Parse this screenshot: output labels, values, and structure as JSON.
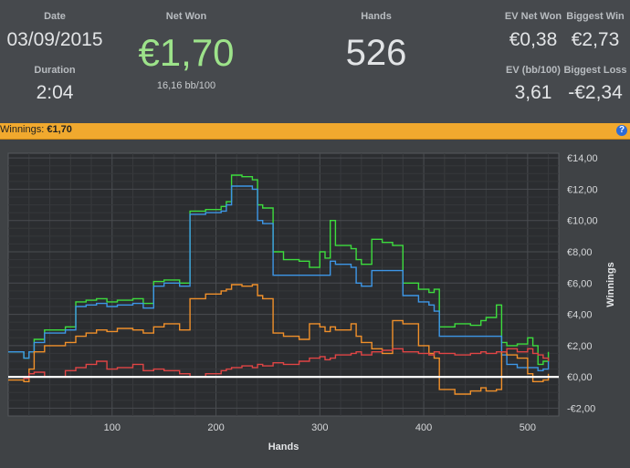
{
  "stats": {
    "date_label": "Date",
    "date_value": "03/09/2015",
    "duration_label": "Duration",
    "duration_value": "2:04",
    "net_won_label": "Net Won",
    "net_won_value": "€1,70",
    "bb_per_100": "16,16 bb/100",
    "hands_label": "Hands",
    "hands_value": "526",
    "ev_net_won_label": "EV Net Won",
    "ev_net_won_value": "€0,38",
    "biggest_win_label": "Biggest Win",
    "biggest_win_value": "€2,73",
    "ev_bb100_label": "EV (bb/100)",
    "ev_bb100_value": "3,61",
    "biggest_loss_label": "Biggest Loss",
    "biggest_loss_value": "-€2,34"
  },
  "winnings_bar": {
    "label": "Winnings:",
    "value": "€1,70",
    "help_icon": "help-icon"
  },
  "colors": {
    "net_won": "#9de38a",
    "bar": "#f1a92e",
    "green_series": "#3ddc3d",
    "blue_series": "#3d96e6",
    "orange_series": "#f0902a",
    "red_series": "#e04545",
    "zero_line": "#ffffff"
  },
  "chart_data": {
    "type": "line",
    "xlabel": "Hands",
    "ylabel": "Winnings",
    "xlim": [
      0,
      530
    ],
    "ylim": [
      -2.5,
      14.3
    ],
    "x_ticks": [
      100,
      200,
      300,
      400,
      500
    ],
    "y_ticks": [
      -2,
      0,
      2,
      4,
      6,
      8,
      10,
      12,
      14
    ],
    "y_tick_labels": [
      "-€2,00",
      "€0,00",
      "€2,00",
      "€4,00",
      "€6,00",
      "€8,00",
      "€10,00",
      "€12,00",
      "€14,00"
    ],
    "grid": true,
    "series": [
      {
        "color": "#3ddc3d",
        "points": [
          [
            0,
            1.6
          ],
          [
            15,
            1.2
          ],
          [
            20,
            1.6
          ],
          [
            25,
            2.4
          ],
          [
            35,
            3.0
          ],
          [
            55,
            3.2
          ],
          [
            65,
            4.8
          ],
          [
            75,
            4.9
          ],
          [
            85,
            5.0
          ],
          [
            95,
            4.8
          ],
          [
            105,
            4.9
          ],
          [
            120,
            5.0
          ],
          [
            130,
            4.7
          ],
          [
            140,
            6.1
          ],
          [
            150,
            6.2
          ],
          [
            165,
            6.0
          ],
          [
            175,
            10.6
          ],
          [
            190,
            10.7
          ],
          [
            205,
            10.9
          ],
          [
            210,
            11.2
          ],
          [
            215,
            12.9
          ],
          [
            225,
            12.8
          ],
          [
            235,
            12.6
          ],
          [
            240,
            11.0
          ],
          [
            245,
            10.8
          ],
          [
            255,
            8.0
          ],
          [
            265,
            7.5
          ],
          [
            280,
            7.4
          ],
          [
            290,
            7.0
          ],
          [
            300,
            8.0
          ],
          [
            305,
            7.6
          ],
          [
            310,
            10.0
          ],
          [
            315,
            8.4
          ],
          [
            330,
            8.2
          ],
          [
            335,
            7.5
          ],
          [
            340,
            7.2
          ],
          [
            350,
            8.8
          ],
          [
            360,
            8.6
          ],
          [
            370,
            8.4
          ],
          [
            380,
            6.0
          ],
          [
            395,
            5.6
          ],
          [
            405,
            5.4
          ],
          [
            410,
            5.6
          ],
          [
            415,
            3.2
          ],
          [
            430,
            3.4
          ],
          [
            445,
            3.3
          ],
          [
            455,
            3.6
          ],
          [
            460,
            3.8
          ],
          [
            470,
            4.6
          ],
          [
            475,
            2.2
          ],
          [
            480,
            2.0
          ],
          [
            490,
            2.1
          ],
          [
            500,
            2.5
          ],
          [
            505,
            2.0
          ],
          [
            510,
            0.8
          ],
          [
            515,
            1.0
          ],
          [
            520,
            1.6
          ]
        ]
      },
      {
        "color": "#3d96e6",
        "points": [
          [
            0,
            1.6
          ],
          [
            15,
            1.2
          ],
          [
            20,
            1.6
          ],
          [
            25,
            2.2
          ],
          [
            35,
            2.8
          ],
          [
            55,
            3.0
          ],
          [
            65,
            4.5
          ],
          [
            75,
            4.6
          ],
          [
            85,
            4.7
          ],
          [
            95,
            4.5
          ],
          [
            105,
            4.6
          ],
          [
            120,
            4.7
          ],
          [
            130,
            4.4
          ],
          [
            140,
            5.8
          ],
          [
            150,
            6.0
          ],
          [
            165,
            5.8
          ],
          [
            175,
            10.4
          ],
          [
            190,
            10.5
          ],
          [
            205,
            10.6
          ],
          [
            210,
            11.0
          ],
          [
            215,
            12.2
          ],
          [
            225,
            12.2
          ],
          [
            235,
            12.0
          ],
          [
            240,
            10.0
          ],
          [
            245,
            9.8
          ],
          [
            255,
            6.5
          ],
          [
            265,
            6.5
          ],
          [
            280,
            6.5
          ],
          [
            290,
            6.5
          ],
          [
            300,
            6.5
          ],
          [
            305,
            6.5
          ],
          [
            310,
            7.4
          ],
          [
            315,
            7.2
          ],
          [
            330,
            7.0
          ],
          [
            335,
            6.0
          ],
          [
            340,
            5.8
          ],
          [
            350,
            6.8
          ],
          [
            360,
            6.8
          ],
          [
            370,
            6.8
          ],
          [
            380,
            5.2
          ],
          [
            395,
            4.8
          ],
          [
            405,
            4.6
          ],
          [
            410,
            4.2
          ],
          [
            415,
            2.6
          ],
          [
            430,
            2.6
          ],
          [
            445,
            2.6
          ],
          [
            455,
            2.6
          ],
          [
            460,
            2.6
          ],
          [
            470,
            2.6
          ],
          [
            475,
            1.4
          ],
          [
            480,
            0.8
          ],
          [
            490,
            0.6
          ],
          [
            500,
            0.6
          ],
          [
            505,
            0.6
          ],
          [
            510,
            0.4
          ],
          [
            515,
            0.5
          ],
          [
            520,
            1.0
          ]
        ]
      },
      {
        "color": "#f0902a",
        "points": [
          [
            0,
            -0.2
          ],
          [
            15,
            -0.3
          ],
          [
            20,
            0.5
          ],
          [
            25,
            1.6
          ],
          [
            35,
            2.0
          ],
          [
            55,
            2.2
          ],
          [
            65,
            2.6
          ],
          [
            75,
            2.8
          ],
          [
            85,
            3.0
          ],
          [
            95,
            2.9
          ],
          [
            105,
            3.1
          ],
          [
            120,
            3.0
          ],
          [
            130,
            2.8
          ],
          [
            140,
            3.2
          ],
          [
            150,
            3.4
          ],
          [
            165,
            3.0
          ],
          [
            175,
            5.0
          ],
          [
            190,
            5.3
          ],
          [
            205,
            5.5
          ],
          [
            210,
            5.6
          ],
          [
            215,
            5.9
          ],
          [
            225,
            5.8
          ],
          [
            235,
            5.9
          ],
          [
            240,
            5.2
          ],
          [
            245,
            5.0
          ],
          [
            255,
            2.8
          ],
          [
            265,
            2.6
          ],
          [
            280,
            2.4
          ],
          [
            290,
            3.4
          ],
          [
            300,
            3.2
          ],
          [
            305,
            2.9
          ],
          [
            310,
            3.2
          ],
          [
            315,
            3.0
          ],
          [
            330,
            3.4
          ],
          [
            335,
            2.6
          ],
          [
            340,
            2.2
          ],
          [
            350,
            1.8
          ],
          [
            360,
            1.5
          ],
          [
            370,
            3.6
          ],
          [
            380,
            3.4
          ],
          [
            395,
            2.0
          ],
          [
            405,
            1.5
          ],
          [
            410,
            1.2
          ],
          [
            415,
            -0.8
          ],
          [
            430,
            -1.1
          ],
          [
            445,
            -0.9
          ],
          [
            455,
            -0.7
          ],
          [
            460,
            -0.9
          ],
          [
            470,
            -0.8
          ],
          [
            475,
            1.6
          ],
          [
            480,
            1.4
          ],
          [
            490,
            1.2
          ],
          [
            500,
            0.2
          ],
          [
            505,
            -0.3
          ],
          [
            510,
            -0.3
          ],
          [
            515,
            -0.2
          ],
          [
            520,
            0.2
          ]
        ]
      },
      {
        "color": "#e04545",
        "points": [
          [
            0,
            0.0
          ],
          [
            15,
            -0.1
          ],
          [
            20,
            0.2
          ],
          [
            25,
            0.3
          ],
          [
            35,
            0.0
          ],
          [
            55,
            0.4
          ],
          [
            65,
            0.6
          ],
          [
            75,
            0.8
          ],
          [
            85,
            1.0
          ],
          [
            95,
            0.5
          ],
          [
            105,
            0.6
          ],
          [
            120,
            0.8
          ],
          [
            130,
            0.4
          ],
          [
            140,
            0.5
          ],
          [
            150,
            0.4
          ],
          [
            165,
            0.2
          ],
          [
            175,
            0.0
          ],
          [
            190,
            0.2
          ],
          [
            205,
            0.4
          ],
          [
            210,
            0.5
          ],
          [
            215,
            0.6
          ],
          [
            225,
            0.7
          ],
          [
            235,
            0.6
          ],
          [
            240,
            0.8
          ],
          [
            245,
            0.7
          ],
          [
            255,
            0.9
          ],
          [
            265,
            0.8
          ],
          [
            280,
            1.0
          ],
          [
            290,
            1.2
          ],
          [
            300,
            1.3
          ],
          [
            305,
            1.1
          ],
          [
            310,
            1.2
          ],
          [
            315,
            1.4
          ],
          [
            330,
            1.5
          ],
          [
            335,
            1.6
          ],
          [
            340,
            1.4
          ],
          [
            350,
            1.6
          ],
          [
            360,
            1.7
          ],
          [
            370,
            1.8
          ],
          [
            380,
            1.6
          ],
          [
            395,
            1.5
          ],
          [
            405,
            1.4
          ],
          [
            410,
            1.6
          ],
          [
            415,
            1.5
          ],
          [
            430,
            1.4
          ],
          [
            445,
            1.5
          ],
          [
            455,
            1.6
          ],
          [
            460,
            1.5
          ],
          [
            470,
            1.6
          ],
          [
            475,
            1.6
          ],
          [
            480,
            1.8
          ],
          [
            490,
            1.6
          ],
          [
            500,
            1.8
          ],
          [
            505,
            1.5
          ],
          [
            510,
            1.4
          ],
          [
            515,
            1.2
          ],
          [
            520,
            1.0
          ]
        ]
      },
      {
        "color": "#ffffff",
        "points": [
          [
            0,
            0
          ],
          [
            530,
            0
          ]
        ]
      }
    ]
  }
}
